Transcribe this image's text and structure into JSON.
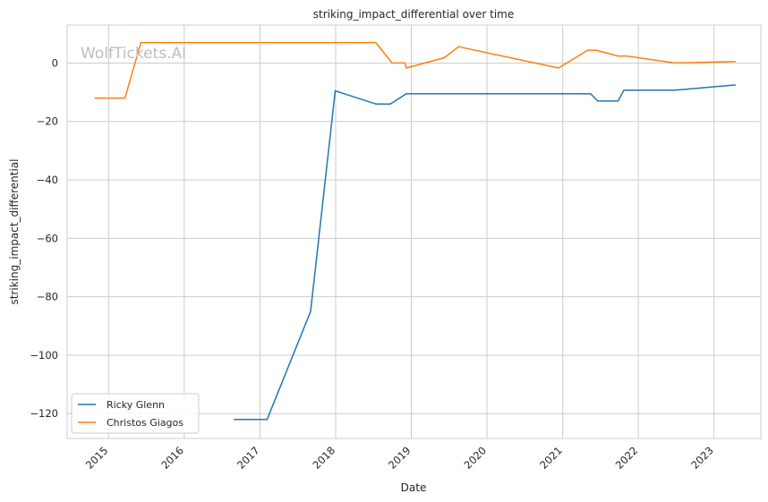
{
  "chart_data": {
    "type": "line",
    "title": "striking_impact_differential over time",
    "xlabel": "Date",
    "ylabel": "striking_impact_differential",
    "watermark": "WolfTickets.AI",
    "xlim": [
      "2014-06-15",
      "2023-08-15"
    ],
    "ylim": [
      -128.5,
      13
    ],
    "x_ticks": [
      "2015-01-01",
      "2016-01-01",
      "2017-01-01",
      "2018-01-01",
      "2019-01-01",
      "2020-01-01",
      "2021-01-01",
      "2022-01-01",
      "2023-01-01"
    ],
    "x_tick_labels": [
      "2015",
      "2016",
      "2017",
      "2018",
      "2019",
      "2020",
      "2021",
      "2022",
      "2023"
    ],
    "y_ticks": [
      0,
      -20,
      -40,
      -60,
      -80,
      -100,
      -120
    ],
    "y_tick_labels": [
      "0",
      "−20",
      "−40",
      "−60",
      "−80",
      "−100",
      "−120"
    ],
    "grid": true,
    "legend_position": "bottom-left",
    "series": [
      {
        "name": "Ricky Glenn",
        "color": "#1f77b4",
        "points": [
          [
            "2016-08-27",
            -122
          ],
          [
            "2017-02-04",
            -122
          ],
          [
            "2017-09-02",
            -85
          ],
          [
            "2017-12-30",
            -9.5
          ],
          [
            "2018-07-14",
            -14
          ],
          [
            "2018-09-22",
            -14
          ],
          [
            "2018-12-08",
            -10.5
          ],
          [
            "2021-05-15",
            -10.5
          ],
          [
            "2021-06-19",
            -13
          ],
          [
            "2021-09-25",
            -13
          ],
          [
            "2021-10-23",
            -9.3
          ],
          [
            "2022-06-25",
            -9.3
          ],
          [
            "2023-04-15",
            -7.5
          ]
        ]
      },
      {
        "name": "Christos Giagos",
        "color": "#ff7f0e",
        "points": [
          [
            "2014-10-25",
            -12
          ],
          [
            "2015-03-21",
            -12
          ],
          [
            "2015-06-06",
            7
          ],
          [
            "2018-07-14",
            7
          ],
          [
            "2018-09-30",
            0
          ],
          [
            "2018-12-01",
            0
          ],
          [
            "2018-12-08",
            -1.7
          ],
          [
            "2019-06-08",
            1.8
          ],
          [
            "2019-08-17",
            5.6
          ],
          [
            "2020-12-12",
            -1.7
          ],
          [
            "2021-05-01",
            4.4
          ],
          [
            "2021-06-12",
            4.4
          ],
          [
            "2021-09-25",
            2.4
          ],
          [
            "2021-11-06",
            2.4
          ],
          [
            "2022-06-25",
            0
          ],
          [
            "2023-04-15",
            0.5
          ]
        ]
      }
    ]
  }
}
